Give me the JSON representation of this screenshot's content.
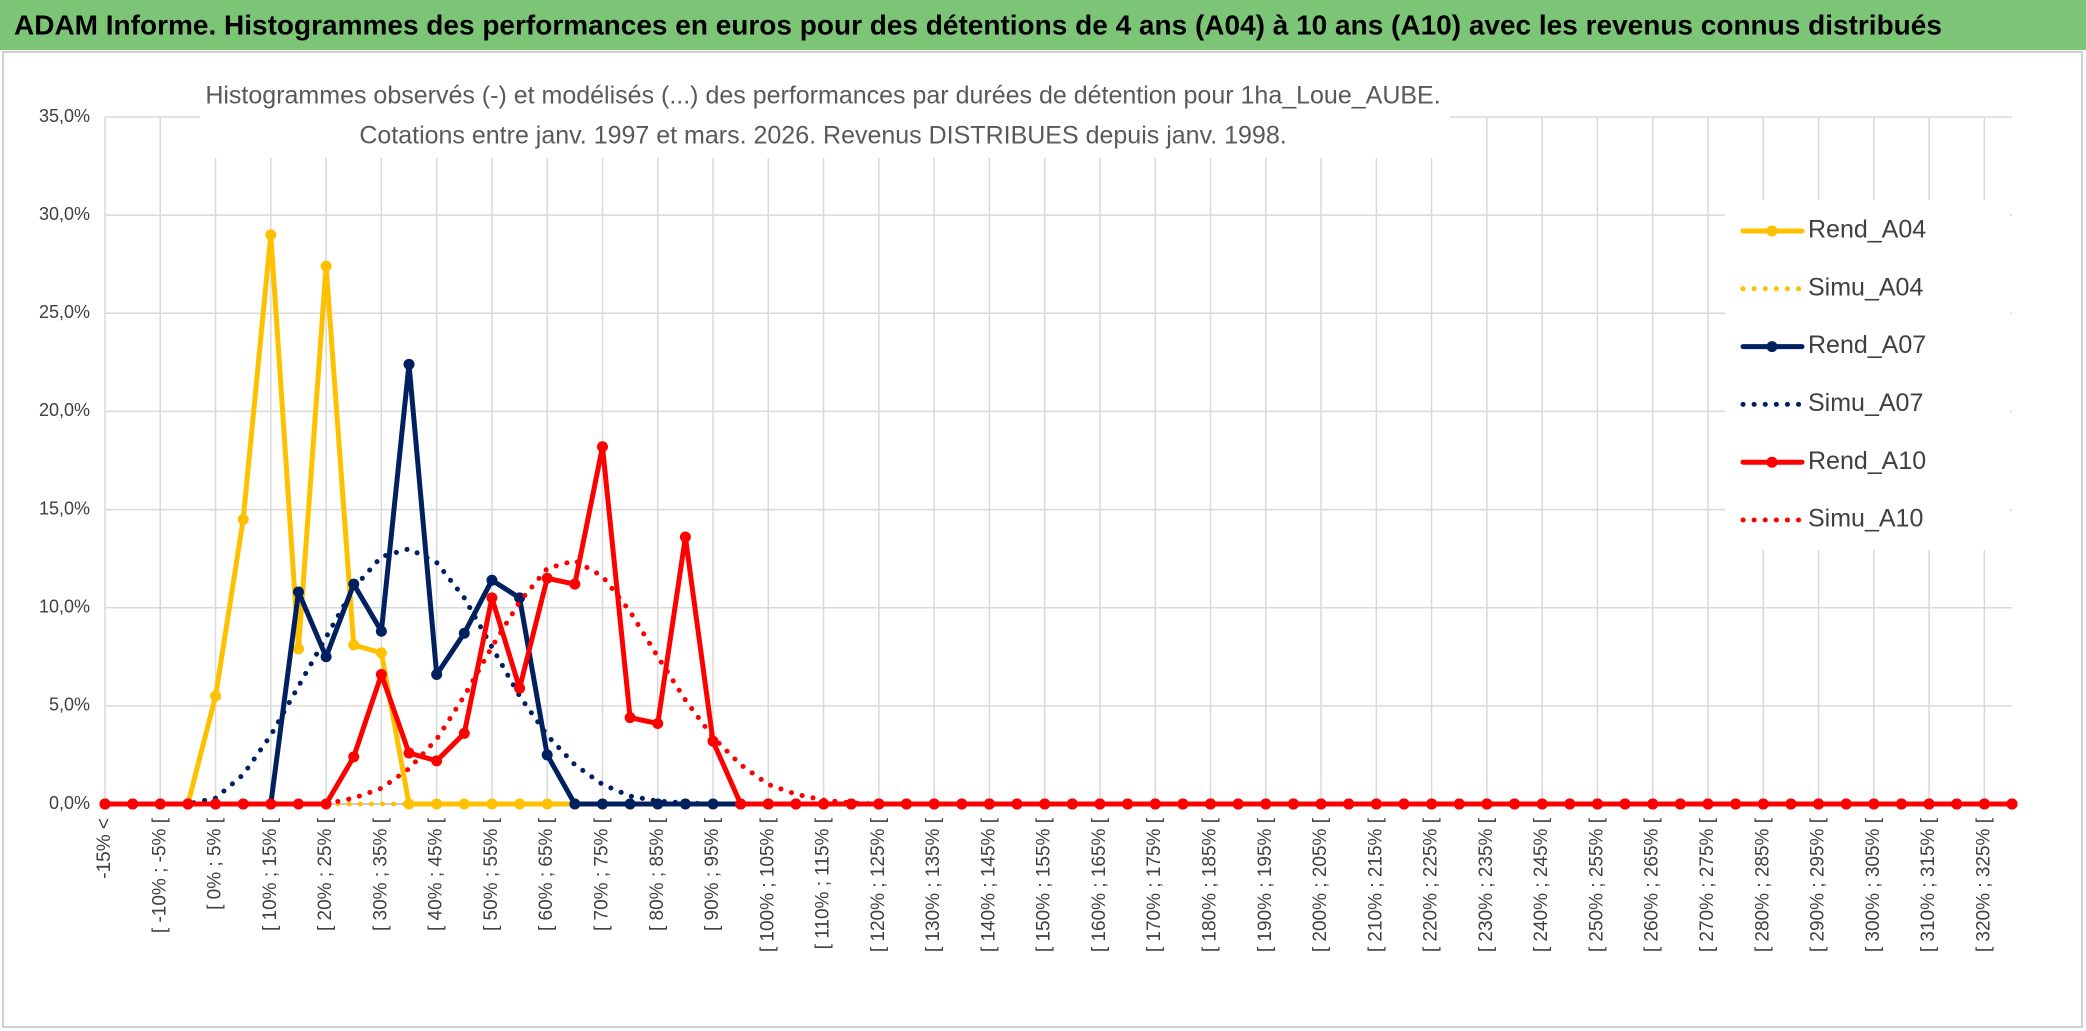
{
  "chart_data": {
    "type": "line",
    "banner": "ADAM Informe. Histogrammes des performances en euros pour des détentions de 4 ans (A04) à 10 ans (A10) avec les revenus connus distribués",
    "title": "Histogrammes observés (-) et modélisés (...) des performances par durées de détention pour 1ha_Loue_AUBE.",
    "subtitle": "Cotations entre janv. 1997 et mars. 2026. Revenus DISTRIBUES depuis janv. 1998.",
    "categories": [
      "-15% <",
      null,
      "[ -10% ; -5% [",
      null,
      "[ 0% ; 5% [",
      null,
      "[ 10% ; 15% [",
      null,
      "[ 20% ; 25% [",
      null,
      "[ 30% ; 35% [",
      null,
      "[ 40% ; 45% [",
      null,
      "[ 50% ; 55% [",
      null,
      "[ 60% ; 65% [",
      null,
      "[ 70% ; 75% [",
      null,
      "[ 80% ; 85% [",
      null,
      "[ 90% ; 95% [",
      null,
      "[ 100% ; 105% [",
      null,
      "[ 110% ; 115% [",
      null,
      "[ 120% ; 125% [",
      null,
      "[ 130% ; 135% [",
      null,
      "[ 140% ; 145% [",
      null,
      "[ 150% ; 155% [",
      null,
      "[ 160% ; 165% [",
      null,
      "[ 170% ; 175% [",
      null,
      "[ 180% ; 185% [",
      null,
      "[ 190% ; 195% [",
      null,
      "[ 200% ; 205% [",
      null,
      "[ 210% ; 215% [",
      null,
      "[ 220% ; 225% [",
      null,
      "[ 230% ; 235% [",
      null,
      "[ 240% ; 245% [",
      null,
      "[ 250% ; 255% [",
      null,
      "[ 260% ; 265% [",
      null,
      "[ 270% ; 275% [",
      null,
      "[ 280% ; 285% [",
      null,
      "[ 290% ; 295% [",
      null,
      "[ 300% ; 305% [",
      null,
      "[ 310% ; 315% [",
      null,
      "[ 320% ; 325% [",
      null
    ],
    "ylim": [
      0,
      35
    ],
    "yticks": [
      {
        "value": 0,
        "label": "0,0%"
      },
      {
        "value": 5,
        "label": "5,0%"
      },
      {
        "value": 10,
        "label": "10,0%"
      },
      {
        "value": 15,
        "label": "15,0%"
      },
      {
        "value": 20,
        "label": "20,0%"
      },
      {
        "value": 25,
        "label": "25,0%"
      },
      {
        "value": 30,
        "label": "30,0%"
      },
      {
        "value": 35,
        "label": "35,0%"
      }
    ],
    "grid": true,
    "legend": "right",
    "series": [
      {
        "name": "Rend_A04",
        "color": "#ffc000",
        "style": "solid",
        "markers": true,
        "values": [
          0,
          0,
          0,
          0,
          5.5,
          14.5,
          29.0,
          7.9,
          27.4,
          8.1,
          7.7,
          0,
          0,
          0,
          0,
          0,
          0,
          0,
          0,
          0,
          0,
          0,
          0,
          0,
          0,
          0,
          0,
          0,
          0,
          0,
          0,
          0,
          0,
          0,
          0,
          0,
          0,
          0,
          0,
          0,
          0,
          0,
          0,
          0,
          0,
          0,
          0,
          0,
          0,
          0,
          0,
          0,
          0,
          0,
          0,
          0,
          0,
          0,
          0,
          0,
          0,
          0,
          0,
          0,
          0,
          0,
          0,
          0,
          0,
          0
        ]
      },
      {
        "name": "Simu_A04",
        "color": "#ffc000",
        "style": "dotted",
        "markers": false,
        "values": [
          0,
          0,
          0,
          0,
          0,
          0,
          0,
          0,
          0,
          0,
          0,
          0,
          0,
          0,
          0,
          0,
          0,
          0,
          0,
          0,
          0,
          0,
          0,
          0,
          0,
          0,
          0,
          0,
          0,
          0,
          0,
          0,
          0,
          0,
          0,
          0,
          0,
          0,
          0,
          0,
          0,
          0,
          0,
          0,
          0,
          0,
          0,
          0,
          0,
          0,
          0,
          0,
          0,
          0,
          0,
          0,
          0,
          0,
          0,
          0,
          0,
          0,
          0,
          0,
          0,
          0,
          0,
          0,
          0,
          0
        ]
      },
      {
        "name": "Rend_A07",
        "color": "#002060",
        "style": "solid",
        "markers": true,
        "values": [
          0,
          0,
          0,
          0,
          0,
          0,
          0,
          10.8,
          7.5,
          11.2,
          8.8,
          22.4,
          6.6,
          8.7,
          11.4,
          10.5,
          2.5,
          0,
          0,
          0,
          0,
          0,
          0,
          0,
          0,
          0,
          0,
          0,
          0,
          0,
          0,
          0,
          0,
          0,
          0,
          0,
          0,
          0,
          0,
          0,
          0,
          0,
          0,
          0,
          0,
          0,
          0,
          0,
          0,
          0,
          0,
          0,
          0,
          0,
          0,
          0,
          0,
          0,
          0,
          0,
          0,
          0,
          0,
          0,
          0,
          0,
          0,
          0,
          0,
          0
        ]
      },
      {
        "name": "Simu_A07",
        "color": "#002060",
        "style": "dotted",
        "markers": false,
        "values": [
          0,
          0,
          0,
          0,
          0.3,
          1.5,
          3.5,
          6.0,
          8.5,
          11.0,
          12.6,
          13.0,
          12.3,
          10.5,
          8.0,
          5.5,
          3.5,
          2.0,
          1.0,
          0.4,
          0.15,
          0.05,
          0,
          0,
          0,
          0,
          0,
          0,
          0,
          0,
          0,
          0,
          0,
          0,
          0,
          0,
          0,
          0,
          0,
          0,
          0,
          0,
          0,
          0,
          0,
          0,
          0,
          0,
          0,
          0,
          0,
          0,
          0,
          0,
          0,
          0,
          0,
          0,
          0,
          0,
          0,
          0,
          0,
          0,
          0,
          0,
          0,
          0,
          0,
          0
        ]
      },
      {
        "name": "Rend_A10",
        "color": "#ff0000",
        "style": "solid",
        "markers": true,
        "values": [
          0,
          0,
          0,
          0,
          0,
          0,
          0,
          0,
          0,
          2.4,
          6.6,
          2.6,
          2.2,
          3.6,
          10.5,
          5.9,
          11.5,
          11.2,
          18.2,
          4.4,
          4.1,
          13.6,
          3.2,
          0,
          0,
          0,
          0,
          0,
          0,
          0,
          0,
          0,
          0,
          0,
          0,
          0,
          0,
          0,
          0,
          0,
          0,
          0,
          0,
          0,
          0,
          0,
          0,
          0,
          0,
          0,
          0,
          0,
          0,
          0,
          0,
          0,
          0,
          0,
          0,
          0,
          0,
          0,
          0,
          0,
          0,
          0,
          0,
          0,
          0,
          0
        ]
      },
      {
        "name": "Simu_A10",
        "color": "#ff0000",
        "style": "dotted",
        "markers": false,
        "values": [
          0,
          0,
          0,
          0,
          0,
          0,
          0,
          0,
          0,
          0.3,
          0.8,
          1.8,
          3.3,
          5.5,
          8.0,
          10.3,
          12.0,
          12.4,
          11.6,
          9.8,
          7.5,
          5.3,
          3.4,
          2.0,
          1.0,
          0.5,
          0.2,
          0.05,
          0,
          0,
          0,
          0,
          0,
          0,
          0,
          0,
          0,
          0,
          0,
          0,
          0,
          0,
          0,
          0,
          0,
          0,
          0,
          0,
          0,
          0,
          0,
          0,
          0,
          0,
          0,
          0,
          0,
          0,
          0,
          0,
          0,
          0,
          0,
          0,
          0,
          0,
          0,
          0,
          0,
          0
        ]
      }
    ]
  }
}
